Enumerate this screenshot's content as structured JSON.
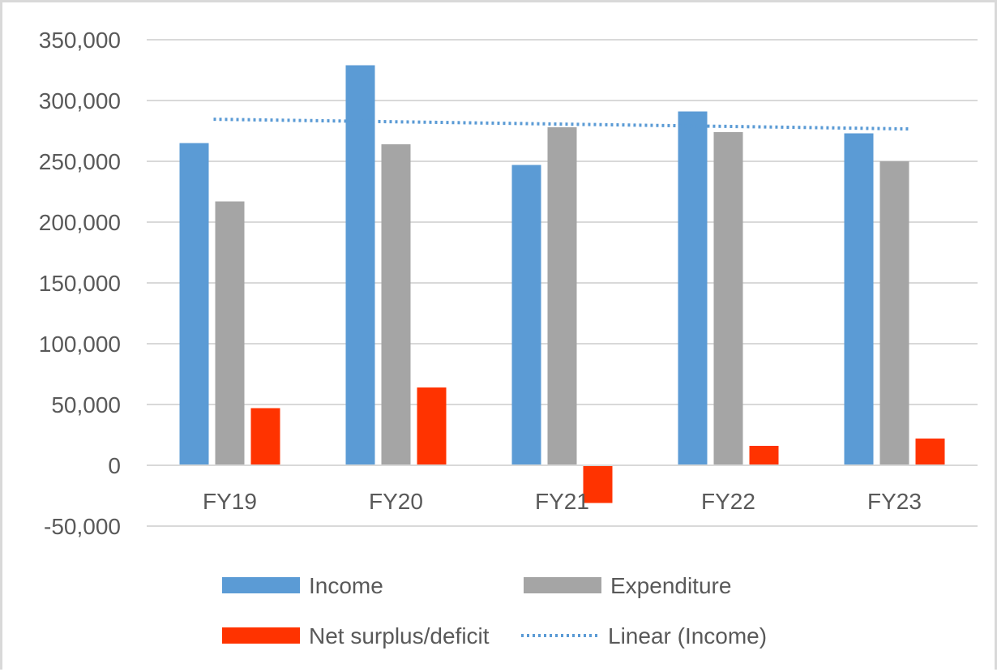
{
  "chart_data": {
    "type": "bar",
    "categories": [
      "FY19",
      "FY20",
      "FY21",
      "FY22",
      "FY23"
    ],
    "series": [
      {
        "name": "Income",
        "values": [
          265000,
          329000,
          247000,
          291000,
          273000
        ],
        "color": "#5b9bd5"
      },
      {
        "name": "Expenditure",
        "values": [
          217000,
          264000,
          278000,
          274000,
          250000
        ],
        "color": "#a5a5a5"
      },
      {
        "name": "Net surplus/deficit",
        "values": [
          47000,
          64000,
          -31000,
          16000,
          22000
        ],
        "color": "#ff3300"
      }
    ],
    "trendline": {
      "name": "Linear (Income)",
      "type": "linear",
      "of_series": "Income",
      "values": [
        284600,
        282600,
        280600,
        278600,
        276600
      ],
      "color": "#5b9bd5",
      "style": "dotted"
    },
    "ylim": [
      -50000,
      350000
    ],
    "yticks": [
      -50000,
      0,
      50000,
      100000,
      150000,
      200000,
      250000,
      300000,
      350000
    ],
    "ytick_labels": [
      "-50,000",
      "0",
      "50,000",
      "100,000",
      "150,000",
      "200,000",
      "250,000",
      "300,000",
      "350,000"
    ],
    "grid": true,
    "legend_position": "bottom",
    "title": "",
    "xlabel": "",
    "ylabel": ""
  }
}
